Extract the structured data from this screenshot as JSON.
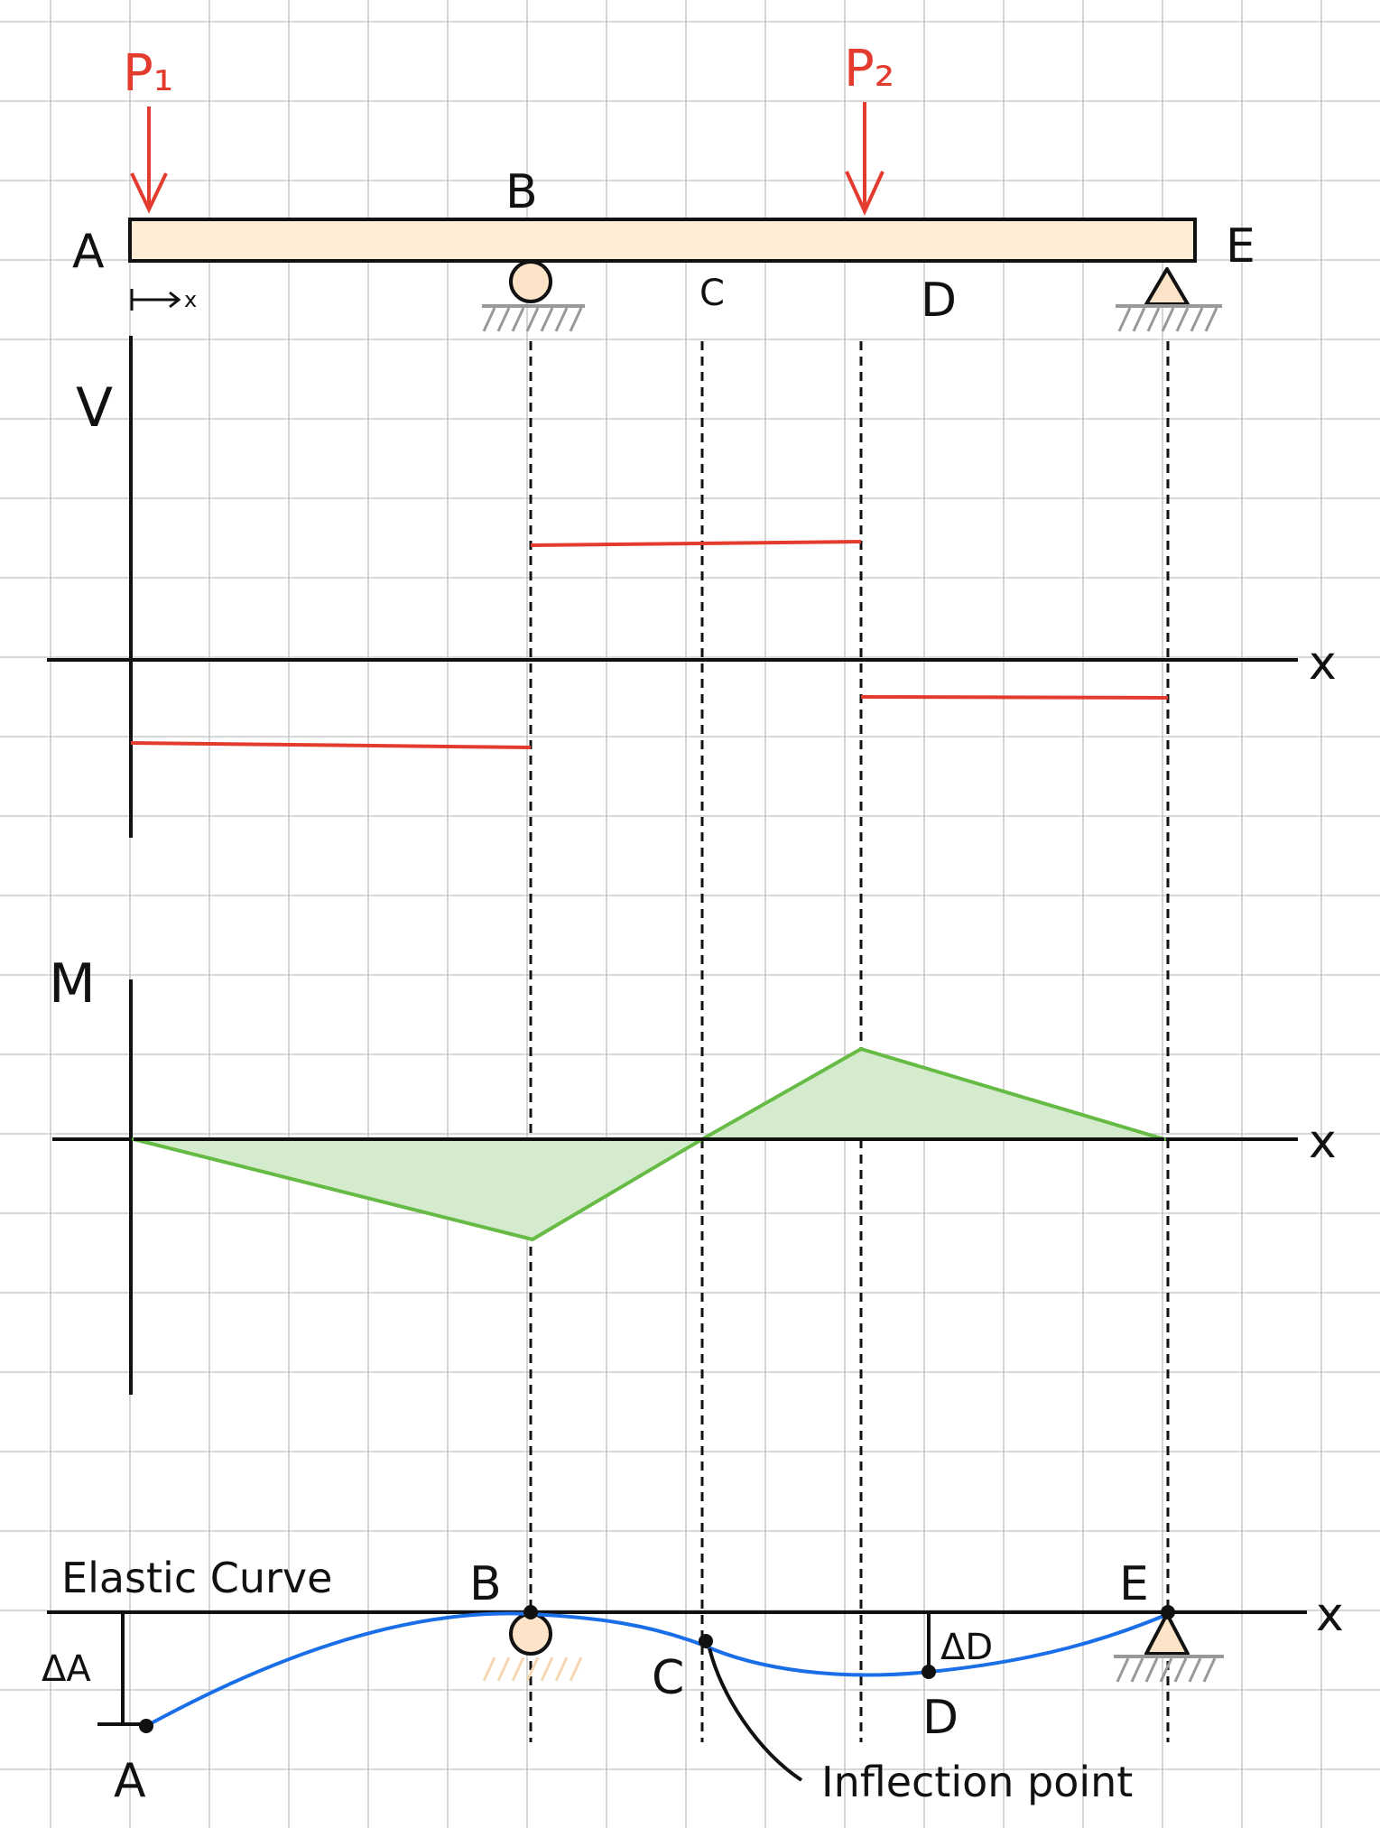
{
  "colors": {
    "grid": "#c8c8c8",
    "beam_fill": "#fdecd6",
    "load": "#e33b2e",
    "shear": "#e33b2e",
    "moment_line": "#66bb44",
    "moment_fill": "#d4ebcd",
    "elastic_curve": "#1a6fe8",
    "support_fill": "#fde4c8",
    "hatch": "#999999",
    "ink": "#111111"
  },
  "beam": {
    "point_labels": [
      "A",
      "B",
      "C",
      "D",
      "E"
    ],
    "x_coord_label": "x",
    "loads": [
      {
        "label": "P₁",
        "at": "A"
      },
      {
        "label": "P₂",
        "at": "between C and D"
      }
    ],
    "supports": [
      {
        "type": "roller",
        "at": "B"
      },
      {
        "type": "pin",
        "at": "E"
      }
    ]
  },
  "shear_diagram": {
    "axis_label": "V",
    "x_axis_label": "x",
    "segments": [
      {
        "from": "A",
        "to": "B",
        "sign": "negative"
      },
      {
        "from": "B",
        "to": "P₂",
        "sign": "positive"
      },
      {
        "from": "P₂",
        "to": "E",
        "sign": "negative"
      }
    ]
  },
  "moment_diagram": {
    "axis_label": "M",
    "x_axis_label": "x",
    "shape": "negative triangle A–B–C, positive triangle C–P₂–E, zero at A, C and E"
  },
  "elastic_curve": {
    "title": "Elastic Curve",
    "x_axis_label": "x",
    "point_labels": [
      "A",
      "B",
      "C",
      "D",
      "E"
    ],
    "deflection_labels": [
      "ΔA",
      "ΔD"
    ],
    "annotation": "Inflection point"
  }
}
